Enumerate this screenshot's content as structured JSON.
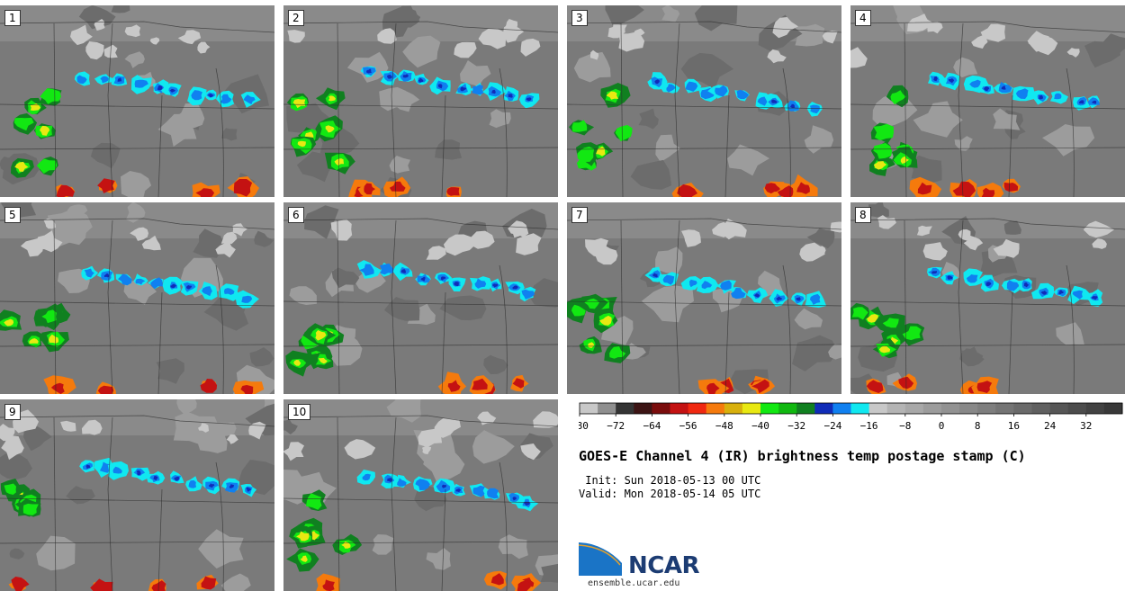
{
  "figure": {
    "title": "GOES-E Channel 4 (IR) brightness temp postage stamp (C)",
    "init": " Init: Sun 2018-05-13 00 UTC",
    "valid": "Valid: Mon 2018-05-14 05 UTC",
    "logo_text": "NCAR",
    "site": "ensemble.ucar.edu"
  },
  "members": [
    "1",
    "2",
    "3",
    "4",
    "5",
    "6",
    "7",
    "8",
    "9",
    "10"
  ],
  "colorbar": {
    "ticks": [
      "−80",
      "−72",
      "−64",
      "−56",
      "−48",
      "−40",
      "−32",
      "−24",
      "−16",
      "−8",
      "0",
      "8",
      "16",
      "24",
      "32"
    ],
    "colors": [
      "#c8c8c8",
      "#8f8f8f",
      "#343434",
      "#3c1414",
      "#7a0c0c",
      "#c41212",
      "#f02810",
      "#f57a0c",
      "#d8b00c",
      "#e8e812",
      "#12e812",
      "#10b810",
      "#108020",
      "#102cb8",
      "#1080f0",
      "#10e8f0",
      "#c8c8c8",
      "#b4b4b4",
      "#a8a8a8",
      "#9c9c9c",
      "#929292",
      "#888888",
      "#7e7e7e",
      "#747474",
      "#6a6a6a",
      "#606060",
      "#565656",
      "#4c4c4c",
      "#424242",
      "#383838"
    ]
  }
}
